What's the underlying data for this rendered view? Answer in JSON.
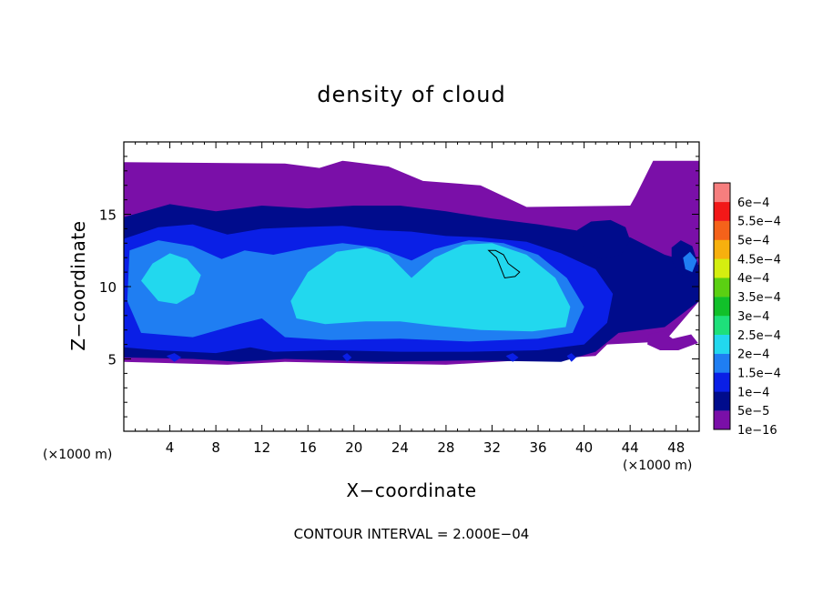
{
  "chart_data": {
    "type": "heatmap",
    "title": "density of cloud",
    "xlabel": "X−coordinate",
    "ylabel": "Z−coordinate",
    "x_unit_left": "(×1000 m)",
    "x_unit_right": "(×1000 m)",
    "xlim": [
      0,
      50
    ],
    "ylim": [
      0,
      20
    ],
    "xticks": [
      4,
      8,
      12,
      16,
      20,
      24,
      28,
      32,
      36,
      40,
      44,
      48
    ],
    "yticks": [
      5,
      10,
      15
    ],
    "footer": "CONTOUR INTERVAL = 2.000E−04",
    "colorbar": {
      "levels": [
        {
          "label": "1e−16",
          "color": "#7a0fa8"
        },
        {
          "label": "5e−5",
          "color": "#000c8c"
        },
        {
          "label": "1e−4",
          "color": "#0a1fe6"
        },
        {
          "label": "1.5e−4",
          "color": "#1f7ef2"
        },
        {
          "label": "2e−4",
          "color": "#22d8ee"
        },
        {
          "label": "2.5e−4",
          "color": "#1ee07a"
        },
        {
          "label": "3e−4",
          "color": "#11c02a"
        },
        {
          "label": "3.5e−4",
          "color": "#5bd012"
        },
        {
          "label": "4e−4",
          "color": "#d4ee10"
        },
        {
          "label": "4.5e−4",
          "color": "#f7b00e"
        },
        {
          "label": "5e−4",
          "color": "#f5621a"
        },
        {
          "label": "5.5e−4",
          "color": "#f21818"
        },
        {
          "label": "6e−4",
          "color": "#f67e7e"
        }
      ]
    },
    "regions": [
      {
        "level": 0,
        "points": [
          [
            0,
            18.6
          ],
          [
            14,
            18.5
          ],
          [
            17,
            18.2
          ],
          [
            19,
            18.7
          ],
          [
            23,
            18.3
          ],
          [
            26,
            17.3
          ],
          [
            31,
            17
          ],
          [
            35,
            15.5
          ],
          [
            44,
            15.6
          ],
          [
            44.5,
            16.3
          ],
          [
            46,
            18.7
          ],
          [
            50,
            18.7
          ],
          [
            50,
            9
          ],
          [
            47,
            6.2
          ],
          [
            42,
            6
          ],
          [
            41,
            5.2
          ],
          [
            28,
            4.6
          ],
          [
            20,
            4.7
          ],
          [
            14,
            4.8
          ],
          [
            9,
            4.6
          ],
          [
            0,
            4.8
          ]
        ]
      },
      {
        "level": 1,
        "points": [
          [
            0,
            14.8
          ],
          [
            4,
            15.7
          ],
          [
            8,
            15.2
          ],
          [
            12,
            15.6
          ],
          [
            16,
            15.4
          ],
          [
            20,
            15.6
          ],
          [
            24,
            15.6
          ],
          [
            28,
            15.2
          ],
          [
            32,
            14.7
          ],
          [
            36,
            14.3
          ],
          [
            40,
            13.8
          ],
          [
            44,
            13.4
          ],
          [
            47,
            12.2
          ],
          [
            50,
            11.5
          ],
          [
            50,
            9
          ],
          [
            47,
            7.2
          ],
          [
            43,
            6.8
          ],
          [
            41,
            5.5
          ],
          [
            38,
            4.8
          ],
          [
            30,
            4.9
          ],
          [
            22,
            4.8
          ],
          [
            14,
            5
          ],
          [
            10,
            4.8
          ],
          [
            6,
            5
          ],
          [
            0,
            5.1
          ]
        ]
      },
      {
        "level": 2,
        "points": [
          [
            0,
            13.3
          ],
          [
            3,
            14.1
          ],
          [
            6,
            14.3
          ],
          [
            9,
            13.6
          ],
          [
            12,
            14
          ],
          [
            15,
            14.1
          ],
          [
            19,
            14.2
          ],
          [
            22,
            13.9
          ],
          [
            25,
            13.8
          ],
          [
            28,
            13.5
          ],
          [
            31,
            13.4
          ],
          [
            35,
            13.1
          ],
          [
            38,
            12.3
          ],
          [
            41,
            11.2
          ],
          [
            42.5,
            9.5
          ],
          [
            42,
            7.5
          ],
          [
            40,
            6
          ],
          [
            36,
            5.6
          ],
          [
            30,
            5.5
          ],
          [
            24,
            5.5
          ],
          [
            18,
            5.6
          ],
          [
            13,
            5.5
          ],
          [
            11,
            5.8
          ],
          [
            8,
            5.4
          ],
          [
            3,
            5.6
          ],
          [
            0,
            5.8
          ]
        ]
      },
      {
        "level": 3,
        "points": [
          [
            0.5,
            12.5
          ],
          [
            3,
            13.2
          ],
          [
            6,
            12.8
          ],
          [
            8.5,
            11.9
          ],
          [
            10.5,
            12.5
          ],
          [
            13,
            12.2
          ],
          [
            16,
            12.7
          ],
          [
            19,
            13
          ],
          [
            22,
            12.7
          ],
          [
            25,
            11.8
          ],
          [
            27,
            12.6
          ],
          [
            30,
            13.2
          ],
          [
            33,
            13
          ],
          [
            36,
            12.2
          ],
          [
            38.5,
            10.6
          ],
          [
            40,
            8.6
          ],
          [
            39,
            6.8
          ],
          [
            36,
            6.4
          ],
          [
            30,
            6.2
          ],
          [
            24,
            6.4
          ],
          [
            18,
            6.3
          ],
          [
            14,
            6.5
          ],
          [
            12,
            7.8
          ],
          [
            10,
            7.4
          ],
          [
            6,
            6.5
          ],
          [
            1.5,
            6.8
          ],
          [
            0.3,
            9
          ]
        ]
      },
      {
        "level": 4,
        "points": [
          [
            14.5,
            9
          ],
          [
            16,
            11
          ],
          [
            18.5,
            12.4
          ],
          [
            21,
            12.7
          ],
          [
            23,
            12.2
          ],
          [
            25,
            10.6
          ],
          [
            27,
            12
          ],
          [
            29.5,
            12.9
          ],
          [
            32,
            13
          ],
          [
            35,
            12.2
          ],
          [
            37.5,
            10.6
          ],
          [
            38.8,
            8.6
          ],
          [
            38.4,
            7.2
          ],
          [
            35.5,
            6.9
          ],
          [
            31,
            7
          ],
          [
            27,
            7.3
          ],
          [
            24,
            7.6
          ],
          [
            21,
            7.6
          ],
          [
            17.5,
            7.4
          ],
          [
            15,
            7.8
          ]
        ]
      },
      {
        "level": 4,
        "points": [
          [
            1.5,
            10.4
          ],
          [
            2.5,
            11.6
          ],
          [
            4,
            12.3
          ],
          [
            5.5,
            11.9
          ],
          [
            6.7,
            10.8
          ],
          [
            6.1,
            9.5
          ],
          [
            4.6,
            8.8
          ],
          [
            3,
            9
          ]
        ]
      },
      {
        "level": 1,
        "points": [
          [
            39.4,
            13.9
          ],
          [
            40.6,
            14.5
          ],
          [
            42.3,
            14.6
          ],
          [
            43.6,
            14.1
          ],
          [
            44,
            13.2
          ],
          [
            43.2,
            12.2
          ],
          [
            41.5,
            11.9
          ],
          [
            40,
            12.6
          ]
        ]
      },
      {
        "level": 1,
        "points": [
          [
            47.6,
            12.7
          ],
          [
            48.4,
            13.2
          ],
          [
            49.4,
            12.8
          ],
          [
            49.9,
            11.6
          ],
          [
            49.2,
            10.6
          ],
          [
            48.2,
            10.9
          ],
          [
            47.6,
            11.8
          ]
        ]
      },
      {
        "level": 3,
        "points": [
          [
            48.6,
            12
          ],
          [
            49.2,
            12.4
          ],
          [
            49.8,
            11.8
          ],
          [
            49.4,
            11
          ],
          [
            48.8,
            11.2
          ]
        ]
      },
      {
        "level": 0,
        "points": [
          [
            45.6,
            6.7
          ],
          [
            46.8,
            6.9
          ],
          [
            47.7,
            6.4
          ],
          [
            49.3,
            6.7
          ],
          [
            49.9,
            6.1
          ],
          [
            48.2,
            5.6
          ],
          [
            46.6,
            5.6
          ],
          [
            45.5,
            6
          ]
        ]
      },
      {
        "level": 2,
        "points": [
          [
            3.7,
            5.2
          ],
          [
            4.4,
            5.4
          ],
          [
            5,
            5.1
          ],
          [
            4.4,
            4.8
          ]
        ]
      },
      {
        "level": 2,
        "points": [
          [
            19,
            5.2
          ],
          [
            19.4,
            5.4
          ],
          [
            19.8,
            5.1
          ],
          [
            19.4,
            4.8
          ]
        ]
      },
      {
        "level": 2,
        "points": [
          [
            33.2,
            5.2
          ],
          [
            33.8,
            5.4
          ],
          [
            34.3,
            5.1
          ],
          [
            33.8,
            4.8
          ]
        ]
      },
      {
        "level": 2,
        "points": [
          [
            38.5,
            5.2
          ],
          [
            38.9,
            5.4
          ],
          [
            39.3,
            5.1
          ],
          [
            38.9,
            4.8
          ]
        ]
      }
    ],
    "contour_line": {
      "points": [
        [
          31.7,
          12.5
        ],
        [
          32.3,
          12.5
        ],
        [
          33,
          12.2
        ],
        [
          33.4,
          11.6
        ],
        [
          34.4,
          11
        ],
        [
          34,
          10.7
        ],
        [
          33.1,
          10.6
        ],
        [
          32.8,
          11.2
        ],
        [
          32.4,
          12
        ]
      ]
    }
  }
}
